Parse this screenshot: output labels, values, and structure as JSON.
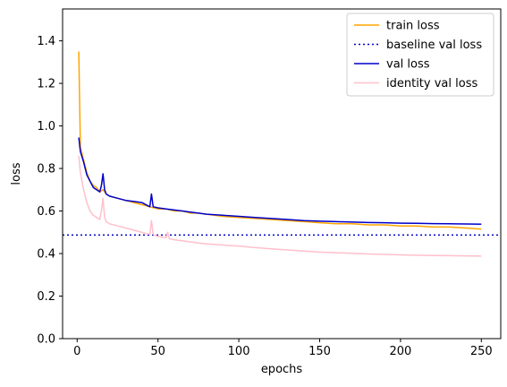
{
  "chart_data": {
    "type": "line",
    "title": "",
    "xlabel": "epochs",
    "ylabel": "loss",
    "xlim": [
      -9,
      262
    ],
    "ylim": [
      0.0,
      1.55
    ],
    "x_ticks": [
      0,
      50,
      100,
      150,
      200,
      250
    ],
    "y_ticks": [
      0.0,
      0.2,
      0.4,
      0.6,
      0.8,
      1.0,
      1.2,
      1.4
    ],
    "legend_position": "top-right",
    "grid": false,
    "series": [
      {
        "name": "train loss",
        "color": "#ffa500",
        "style": "solid",
        "x": [
          1,
          2,
          4,
          6,
          8,
          10,
          12,
          14,
          16,
          18,
          20,
          25,
          30,
          35,
          40,
          45,
          50,
          55,
          60,
          65,
          70,
          75,
          80,
          90,
          100,
          110,
          120,
          130,
          140,
          150,
          160,
          170,
          180,
          190,
          200,
          210,
          220,
          230,
          240,
          250
        ],
        "y": [
          1.35,
          0.9,
          0.84,
          0.78,
          0.74,
          0.72,
          0.71,
          0.69,
          0.7,
          0.68,
          0.67,
          0.66,
          0.65,
          0.64,
          0.63,
          0.62,
          0.61,
          0.61,
          0.6,
          0.6,
          0.59,
          0.59,
          0.585,
          0.575,
          0.57,
          0.565,
          0.56,
          0.555,
          0.55,
          0.545,
          0.54,
          0.54,
          0.535,
          0.535,
          0.53,
          0.53,
          0.525,
          0.525,
          0.52,
          0.515
        ]
      },
      {
        "name": "baseline val loss",
        "color": "#0000cc",
        "style": "dotted",
        "y_const": 0.487
      },
      {
        "name": "val loss",
        "color": "#0000cc",
        "style": "solid",
        "x": [
          1,
          2,
          4,
          6,
          8,
          10,
          12,
          14,
          15,
          16,
          17,
          18,
          20,
          25,
          30,
          35,
          40,
          45,
          46,
          47,
          50,
          55,
          60,
          65,
          70,
          75,
          80,
          90,
          100,
          110,
          120,
          130,
          140,
          150,
          160,
          170,
          180,
          190,
          200,
          210,
          220,
          230,
          240,
          250
        ],
        "y": [
          0.945,
          0.88,
          0.83,
          0.77,
          0.74,
          0.71,
          0.7,
          0.69,
          0.72,
          0.775,
          0.7,
          0.68,
          0.67,
          0.66,
          0.65,
          0.645,
          0.64,
          0.62,
          0.68,
          0.62,
          0.615,
          0.61,
          0.605,
          0.6,
          0.595,
          0.59,
          0.585,
          0.58,
          0.575,
          0.57,
          0.565,
          0.56,
          0.555,
          0.552,
          0.55,
          0.548,
          0.546,
          0.545,
          0.543,
          0.542,
          0.541,
          0.54,
          0.539,
          0.538
        ]
      },
      {
        "name": "identity val loss",
        "color": "#ffc0cb",
        "style": "solid",
        "x": [
          1,
          2,
          4,
          6,
          8,
          10,
          12,
          14,
          15,
          16,
          17,
          18,
          20,
          25,
          30,
          35,
          40,
          45,
          46,
          47,
          50,
          55,
          56,
          57,
          60,
          65,
          70,
          75,
          80,
          90,
          100,
          110,
          120,
          130,
          140,
          150,
          160,
          170,
          180,
          190,
          200,
          210,
          220,
          230,
          240,
          250
        ],
        "y": [
          0.86,
          0.78,
          0.7,
          0.64,
          0.6,
          0.58,
          0.57,
          0.56,
          0.6,
          0.66,
          0.57,
          0.55,
          0.54,
          0.53,
          0.52,
          0.51,
          0.5,
          0.49,
          0.555,
          0.49,
          0.48,
          0.475,
          0.5,
          0.47,
          0.465,
          0.46,
          0.455,
          0.45,
          0.445,
          0.44,
          0.435,
          0.428,
          0.422,
          0.417,
          0.412,
          0.407,
          0.404,
          0.401,
          0.398,
          0.396,
          0.394,
          0.392,
          0.391,
          0.39,
          0.389,
          0.388
        ]
      }
    ]
  }
}
